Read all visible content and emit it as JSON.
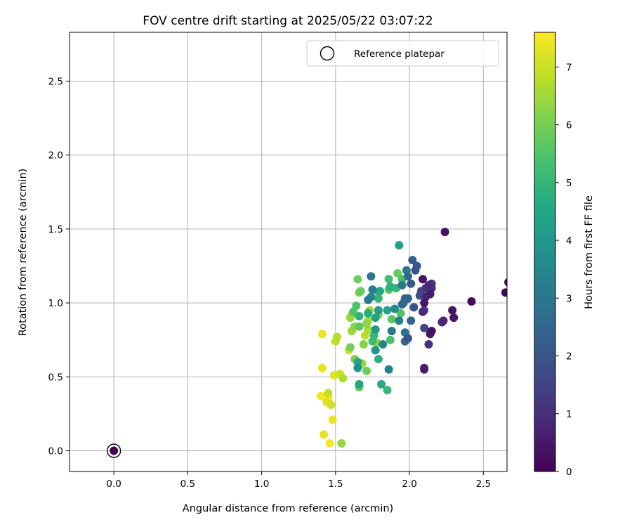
{
  "chart_data": {
    "type": "scatter",
    "title": "FOV centre drift starting at 2025/05/22 03:07:22",
    "xlabel": "Angular distance from reference (arcmin)",
    "ylabel": "Rotation from reference (arcmin)",
    "xlim": [
      -0.3,
      2.66
    ],
    "ylim": [
      -0.14,
      2.83
    ],
    "xticks": [
      0.0,
      0.5,
      1.0,
      1.5,
      2.0,
      2.5
    ],
    "yticks": [
      0.0,
      0.5,
      1.0,
      1.5,
      2.0,
      2.5
    ],
    "xtick_labels": [
      "0.0",
      "0.5",
      "1.0",
      "1.5",
      "2.0",
      "2.5"
    ],
    "ytick_labels": [
      "0.0",
      "0.5",
      "1.0",
      "1.5",
      "2.0",
      "2.5"
    ],
    "grid": true,
    "legend": {
      "position": "top-right",
      "entries": [
        "Reference platepar"
      ]
    },
    "reference_point": {
      "x": 0.0,
      "y": 0.0,
      "c": 0.0
    },
    "colorbar": {
      "label": "Hours from first FF file",
      "range": [
        0,
        7.6
      ],
      "ticks": [
        0,
        1,
        2,
        3,
        4,
        5,
        6,
        7
      ],
      "tick_labels": [
        "0",
        "1",
        "2",
        "3",
        "4",
        "5",
        "6",
        "7"
      ],
      "colormap": "viridis"
    },
    "points": [
      [
        2.24,
        1.48,
        0.3
      ],
      [
        2.42,
        1.01,
        0.2
      ],
      [
        2.65,
        1.07,
        0.1
      ],
      [
        2.67,
        1.14,
        0.05
      ],
      [
        2.29,
        0.95,
        0.4
      ],
      [
        2.3,
        0.9,
        0.45
      ],
      [
        2.23,
        0.88,
        0.8
      ],
      [
        2.22,
        0.87,
        0.9
      ],
      [
        2.1,
        0.55,
        0.6
      ],
      [
        2.1,
        0.56,
        0.7
      ],
      [
        2.13,
        0.72,
        1.1
      ],
      [
        2.14,
        0.79,
        0.5
      ],
      [
        2.15,
        0.81,
        0.35
      ],
      [
        2.1,
        0.83,
        1.5
      ],
      [
        2.15,
        1.1,
        1.0
      ],
      [
        2.15,
        1.13,
        1.3
      ],
      [
        2.13,
        1.12,
        0.9
      ],
      [
        2.11,
        1.1,
        1.2
      ],
      [
        2.14,
        1.06,
        0.6
      ],
      [
        2.11,
        1.04,
        0.8
      ],
      [
        2.09,
        1.16,
        0.4
      ],
      [
        2.08,
        1.08,
        1.6
      ],
      [
        2.07,
        1.05,
        1.8
      ],
      [
        2.1,
        1.0,
        0.5
      ],
      [
        2.1,
        0.95,
        1.7
      ],
      [
        2.09,
        0.94,
        0.9
      ],
      [
        2.05,
        1.25,
        2.0
      ],
      [
        2.04,
        1.22,
        1.9
      ],
      [
        2.02,
        1.29,
        2.2
      ],
      [
        2.01,
        1.13,
        2.1
      ],
      [
        2.03,
        0.97,
        1.9
      ],
      [
        2.01,
        0.88,
        2.3
      ],
      [
        1.99,
        1.03,
        2.5
      ],
      [
        1.97,
        1.03,
        2.4
      ],
      [
        1.96,
        1.0,
        2.7
      ],
      [
        1.95,
        0.99,
        2.6
      ],
      [
        1.97,
        0.74,
        2.5
      ],
      [
        1.99,
        0.76,
        2.0
      ],
      [
        1.97,
        0.8,
        2.8
      ],
      [
        1.99,
        1.18,
        2.6
      ],
      [
        1.98,
        1.22,
        2.9
      ],
      [
        1.95,
        1.12,
        3.0
      ],
      [
        1.93,
        1.39,
        4.3
      ],
      [
        1.92,
        1.2,
        5.8
      ],
      [
        1.95,
        1.16,
        5.4
      ],
      [
        1.94,
        0.93,
        5.5
      ],
      [
        1.93,
        0.88,
        3.3
      ],
      [
        1.9,
        0.96,
        3.6
      ],
      [
        1.91,
        1.1,
        5.0
      ],
      [
        1.86,
        1.16,
        5.3
      ],
      [
        1.87,
        1.11,
        4.8
      ],
      [
        1.86,
        1.09,
        5.6
      ],
      [
        1.85,
        0.95,
        4.4
      ],
      [
        1.88,
        0.89,
        5.6
      ],
      [
        1.88,
        0.81,
        3.1
      ],
      [
        1.87,
        0.75,
        5.4
      ],
      [
        1.86,
        0.55,
        3.3
      ],
      [
        1.85,
        0.41,
        5.0
      ],
      [
        1.82,
        0.72,
        3.4
      ],
      [
        1.81,
        0.45,
        4.6
      ],
      [
        1.8,
        1.08,
        4.6
      ],
      [
        1.79,
        1.07,
        5.2
      ],
      [
        1.79,
        1.03,
        5.0
      ],
      [
        1.79,
        0.95,
        4.2
      ],
      [
        1.79,
        0.92,
        6.0
      ],
      [
        1.77,
        0.9,
        4.4
      ],
      [
        1.77,
        0.82,
        4.1
      ],
      [
        1.78,
        0.73,
        6.4
      ],
      [
        1.79,
        0.62,
        4.8
      ],
      [
        1.77,
        0.68,
        3.9
      ],
      [
        1.76,
        0.78,
        5.1
      ],
      [
        1.75,
        0.74,
        5.2
      ],
      [
        1.74,
        1.18,
        3.0
      ],
      [
        1.75,
        1.09,
        3.2
      ],
      [
        1.74,
        1.04,
        3.6
      ],
      [
        1.72,
        1.02,
        3.1
      ],
      [
        1.72,
        0.93,
        4.7
      ],
      [
        1.73,
        0.95,
        6.5
      ],
      [
        1.72,
        0.88,
        6.7
      ],
      [
        1.71,
        0.86,
        6.3
      ],
      [
        1.72,
        0.82,
        6.6
      ],
      [
        1.7,
        0.78,
        6.8
      ],
      [
        1.69,
        0.72,
        6.2
      ],
      [
        1.71,
        0.54,
        5.9
      ],
      [
        1.68,
        0.59,
        6.4
      ],
      [
        1.67,
        1.08,
        5.8
      ],
      [
        1.66,
        1.07,
        6.1
      ],
      [
        1.65,
        1.16,
        5.9
      ],
      [
        1.66,
        0.91,
        4.9
      ],
      [
        1.66,
        0.84,
        5.7
      ],
      [
        1.64,
        0.98,
        5.4
      ],
      [
        1.65,
        0.6,
        4.5
      ],
      [
        1.65,
        0.56,
        3.8
      ],
      [
        1.66,
        0.45,
        4.4
      ],
      [
        1.66,
        0.43,
        5.7
      ],
      [
        1.63,
        0.84,
        6.3
      ],
      [
        1.62,
        0.94,
        5.5
      ],
      [
        1.61,
        0.92,
        6.6
      ],
      [
        1.6,
        0.9,
        6.4
      ],
      [
        1.61,
        0.81,
        6.5
      ],
      [
        1.6,
        0.7,
        6.0
      ],
      [
        1.59,
        0.68,
        6.9
      ],
      [
        1.63,
        0.62,
        6.1
      ],
      [
        1.55,
        0.49,
        6.7
      ],
      [
        1.54,
        0.05,
        6.4
      ],
      [
        1.53,
        0.52,
        7.0
      ],
      [
        1.51,
        0.77,
        6.8
      ],
      [
        1.5,
        0.74,
        6.9
      ],
      [
        1.49,
        0.51,
        7.2
      ],
      [
        1.48,
        0.21,
        7.4
      ],
      [
        1.47,
        0.31,
        7.1
      ],
      [
        1.46,
        0.32,
        7.3
      ],
      [
        1.45,
        0.39,
        6.9
      ],
      [
        1.45,
        0.36,
        7.5
      ],
      [
        1.46,
        0.05,
        7.5
      ],
      [
        1.42,
        0.11,
        7.3
      ],
      [
        1.41,
        0.79,
        7.4
      ],
      [
        1.41,
        0.56,
        7.3
      ],
      [
        1.4,
        0.37,
        7.5
      ],
      [
        1.44,
        0.33,
        7.2
      ]
    ]
  }
}
